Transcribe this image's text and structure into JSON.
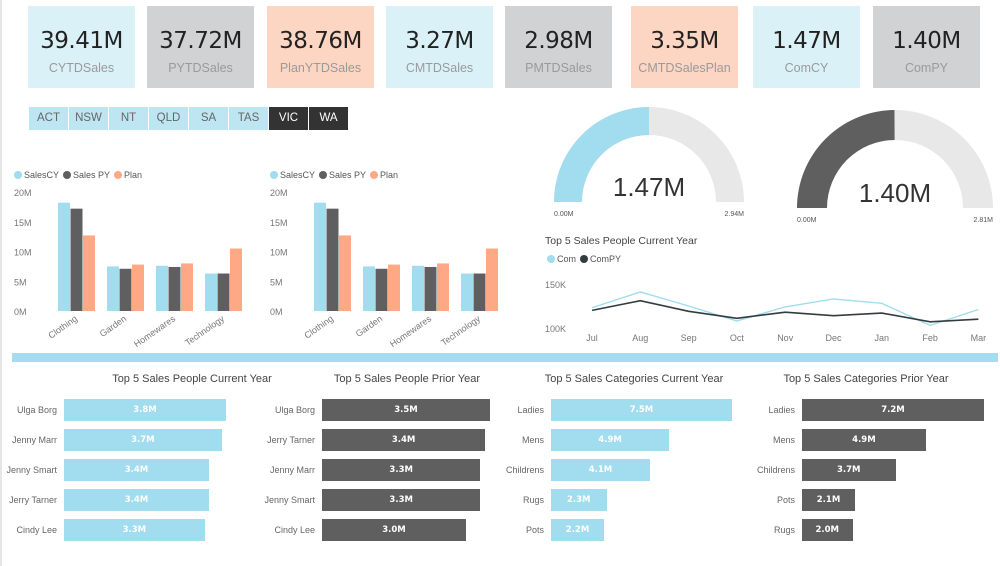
{
  "colors": {
    "cy": "#a2dcef",
    "py": "#5f5f5f",
    "plan": "#fea886",
    "card_blue": "#dbf1f8",
    "card_gray": "#d0d2d3",
    "card_peach": "#fdd5c3",
    "track": "#e8e8e8",
    "divider": "#a6dcef",
    "slicer": "#bde5f2",
    "slicer_selected": "#333333"
  },
  "kpis": [
    {
      "value": "39.41M",
      "label": "CYTDSales",
      "tone": "card_blue"
    },
    {
      "value": "37.72M",
      "label": "PYTDSales",
      "tone": "card_gray"
    },
    {
      "value": "38.76M",
      "label": "PlanYTDSales",
      "tone": "card_peach"
    },
    {
      "value": "3.27M",
      "label": "CMTDSales",
      "tone": "card_blue"
    },
    {
      "value": "2.98M",
      "label": "PMTDSales",
      "tone": "card_gray"
    },
    {
      "value": "3.35M",
      "label": "CMTDSalesPlan",
      "tone": "card_peach"
    },
    {
      "value": "1.47M",
      "label": "ComCY",
      "tone": "card_blue"
    },
    {
      "value": "1.40M",
      "label": "ComPY",
      "tone": "card_gray"
    }
  ],
  "slicer": [
    {
      "label": "ACT",
      "selected": false
    },
    {
      "label": "NSW",
      "selected": false
    },
    {
      "label": "NT",
      "selected": false
    },
    {
      "label": "QLD",
      "selected": false
    },
    {
      "label": "SA",
      "selected": false
    },
    {
      "label": "TAS",
      "selected": false
    },
    {
      "label": "VIC",
      "selected": true
    },
    {
      "label": "WA",
      "selected": true
    }
  ],
  "chart_data": [
    {
      "type": "bar",
      "categories": [
        "Clothing",
        "Garden",
        "Homewares",
        "Technology"
      ],
      "series": [
        {
          "name": "SalesCY",
          "values": [
            18.2,
            7.5,
            7.6,
            6.3
          ]
        },
        {
          "name": "Sales PY",
          "values": [
            17.2,
            7.1,
            7.4,
            6.3
          ]
        },
        {
          "name": "Plan",
          "values": [
            12.7,
            7.8,
            8.0,
            10.5
          ]
        }
      ],
      "yticks": [
        "0M",
        "5M",
        "10M",
        "15M",
        "20M"
      ],
      "ylim": [
        0,
        20
      ]
    },
    {
      "type": "bar",
      "categories": [
        "Clothing",
        "Garden",
        "Homewares",
        "Technology"
      ],
      "series": [
        {
          "name": "SalesCY",
          "values": [
            18.2,
            7.5,
            7.6,
            6.3
          ]
        },
        {
          "name": "Sales PY",
          "values": [
            17.2,
            7.1,
            7.4,
            6.3
          ]
        },
        {
          "name": "Plan",
          "values": [
            12.7,
            7.8,
            8.0,
            10.5
          ]
        }
      ],
      "yticks": [
        "0M",
        "5M",
        "10M",
        "15M",
        "20M"
      ],
      "ylim": [
        0,
        20
      ]
    },
    {
      "type": "gauge",
      "value": 1.47,
      "min": 0,
      "max": 2.94,
      "value_label": "1.47M",
      "min_label": "0.00M",
      "max_label": "2.94M"
    },
    {
      "type": "gauge",
      "value": 1.4,
      "min": 0,
      "max": 2.81,
      "value_label": "1.40M",
      "min_label": "0.00M",
      "max_label": "2.81M"
    },
    {
      "type": "line",
      "title": "Top 5 Sales People Current Year",
      "categories": [
        "Jul",
        "Aug",
        "Sep",
        "Oct",
        "Nov",
        "Dec",
        "Jan",
        "Feb",
        "Mar"
      ],
      "series": [
        {
          "name": "Com",
          "values": [
            123,
            141,
            125,
            108,
            124,
            133,
            128,
            103,
            121
          ]
        },
        {
          "name": "ComPY",
          "values": [
            120,
            131,
            119,
            111,
            118,
            114,
            117,
            107,
            110
          ]
        }
      ],
      "yticks": [
        "100K",
        "150K"
      ],
      "ylim": [
        100,
        150
      ]
    },
    {
      "type": "hbar",
      "title": "Top 5 Sales People Current Year",
      "categories": [
        "Ulga Borg",
        "Jenny Marr",
        "Jenny Smart",
        "Jerry Tarner",
        "Cindy Lee"
      ],
      "values": [
        3.8,
        3.7,
        3.4,
        3.4,
        3.3
      ],
      "labels": [
        "3.8M",
        "3.7M",
        "3.4M",
        "3.4M",
        "3.3M"
      ],
      "color": "cy"
    },
    {
      "type": "hbar",
      "title": "Top 5 Sales People Prior Year",
      "categories": [
        "Ulga Borg",
        "Jerry Tarner",
        "Jenny Marr",
        "Jenny Smart",
        "Cindy Lee"
      ],
      "values": [
        3.5,
        3.4,
        3.3,
        3.3,
        3.0
      ],
      "labels": [
        "3.5M",
        "3.4M",
        "3.3M",
        "3.3M",
        "3.0M"
      ],
      "color": "py"
    },
    {
      "type": "hbar",
      "title": "Top 5 Sales Categories Current Year",
      "categories": [
        "Ladies",
        "Mens",
        "Childrens",
        "Rugs",
        "Pots"
      ],
      "values": [
        7.5,
        4.9,
        4.1,
        2.3,
        2.2
      ],
      "labels": [
        "7.5M",
        "4.9M",
        "4.1M",
        "2.3M",
        "2.2M"
      ],
      "color": "cy"
    },
    {
      "type": "hbar",
      "title": "Top 5 Sales Categories Prior Year",
      "categories": [
        "Ladies",
        "Mens",
        "Childrens",
        "Pots",
        "Rugs"
      ],
      "values": [
        7.2,
        4.9,
        3.7,
        2.1,
        2.0
      ],
      "labels": [
        "7.2M",
        "4.9M",
        "3.7M",
        "2.1M",
        "2.0M"
      ],
      "color": "py"
    }
  ]
}
